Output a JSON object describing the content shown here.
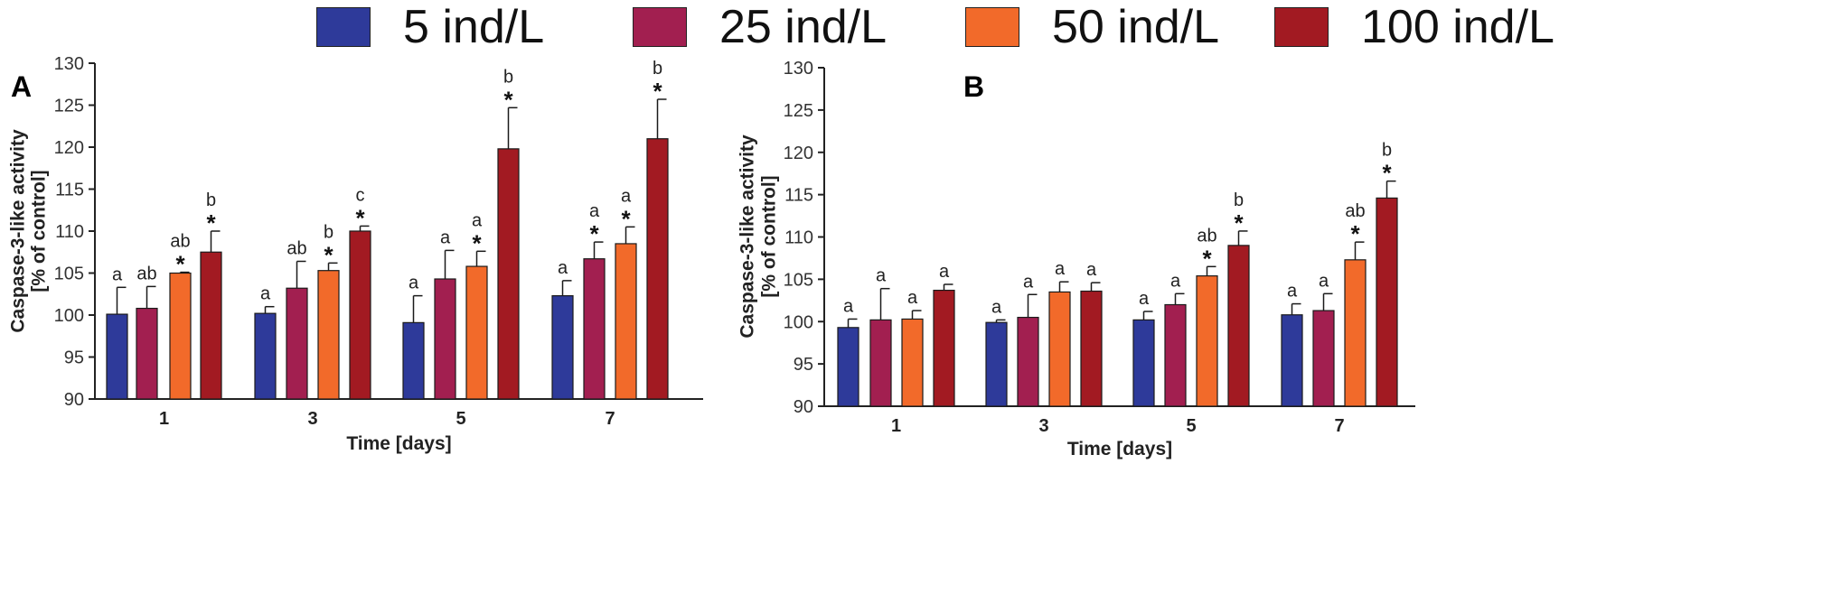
{
  "legend": [
    {
      "label": "5 ind/L",
      "color": "#2e3a9a"
    },
    {
      "label": "25 ind/L",
      "color": "#a21f50"
    },
    {
      "label": "50 ind/L",
      "color": "#f26a2a"
    },
    {
      "label": "100 ind/L",
      "color": "#a21a22"
    }
  ],
  "chart_data": [
    {
      "panel": "A",
      "type": "bar",
      "ylabel_line1": "Caspase-3-like activity",
      "ylabel_line2": "[% of control]",
      "xlabel": "Time [days]",
      "categories": [
        "1",
        "3",
        "5",
        "7"
      ],
      "ylim": [
        90,
        130
      ],
      "yticks": [
        "90",
        "95",
        "100",
        "105",
        "110",
        "115",
        "120",
        "125",
        "130"
      ],
      "series": [
        {
          "name": "5 ind/L",
          "values": [
            100.1,
            100.2,
            99.1,
            102.3
          ],
          "errors": [
            3.2,
            0.8,
            3.2,
            1.8
          ],
          "letters": [
            "a",
            "a",
            "a",
            "a"
          ],
          "stars": [
            "",
            "",
            "",
            ""
          ]
        },
        {
          "name": "25 ind/L",
          "values": [
            100.8,
            103.2,
            104.3,
            106.7
          ],
          "errors": [
            2.6,
            3.2,
            3.4,
            2.0
          ],
          "letters": [
            "ab",
            "ab",
            "a",
            "a"
          ],
          "stars": [
            "",
            "",
            "",
            "*"
          ]
        },
        {
          "name": "50 ind/L",
          "values": [
            105.0,
            105.3,
            105.8,
            108.5
          ],
          "errors": [
            0.1,
            0.9,
            1.8,
            2.0
          ],
          "letters": [
            "ab",
            "b",
            "a",
            "a"
          ],
          "stars": [
            "*",
            "*",
            "*",
            "*"
          ]
        },
        {
          "name": "100 ind/L",
          "values": [
            107.5,
            110.0,
            119.8,
            121.0
          ],
          "errors": [
            2.5,
            0.6,
            4.9,
            4.7
          ],
          "letters": [
            "b",
            "c",
            "b",
            "b"
          ],
          "stars": [
            "*",
            "*",
            "*",
            "*"
          ]
        }
      ]
    },
    {
      "panel": "B",
      "type": "bar",
      "ylabel_line1": "Caspase-3-like activity",
      "ylabel_line2": "[% of control]",
      "xlabel": "Time [days]",
      "categories": [
        "1",
        "3",
        "5",
        "7"
      ],
      "ylim": [
        90,
        130
      ],
      "yticks": [
        "90",
        "95",
        "100",
        "105",
        "110",
        "115",
        "120",
        "125",
        "130"
      ],
      "series": [
        {
          "name": "5 ind/L",
          "values": [
            99.3,
            99.9,
            100.2,
            100.8
          ],
          "errors": [
            1.0,
            0.3,
            1.0,
            1.3
          ],
          "letters": [
            "a",
            "a",
            "a",
            "a"
          ],
          "stars": [
            "",
            "",
            "",
            ""
          ]
        },
        {
          "name": "25 ind/L",
          "values": [
            100.2,
            100.5,
            102.0,
            101.3
          ],
          "errors": [
            3.7,
            2.7,
            1.3,
            2.0
          ],
          "letters": [
            "a",
            "a",
            "a",
            "a"
          ],
          "stars": [
            "",
            "",
            "",
            ""
          ]
        },
        {
          "name": "50 ind/L",
          "values": [
            100.3,
            103.5,
            105.4,
            107.3
          ],
          "errors": [
            1.0,
            1.2,
            1.1,
            2.1
          ],
          "letters": [
            "a",
            "a",
            "ab",
            "ab"
          ],
          "stars": [
            "",
            "",
            "*",
            "*"
          ]
        },
        {
          "name": "100 ind/L",
          "values": [
            103.7,
            103.6,
            109.0,
            114.6
          ],
          "errors": [
            0.7,
            1.0,
            1.7,
            2.0
          ],
          "letters": [
            "a",
            "a",
            "b",
            "b"
          ],
          "stars": [
            "",
            "",
            "*",
            "*"
          ]
        }
      ]
    }
  ]
}
